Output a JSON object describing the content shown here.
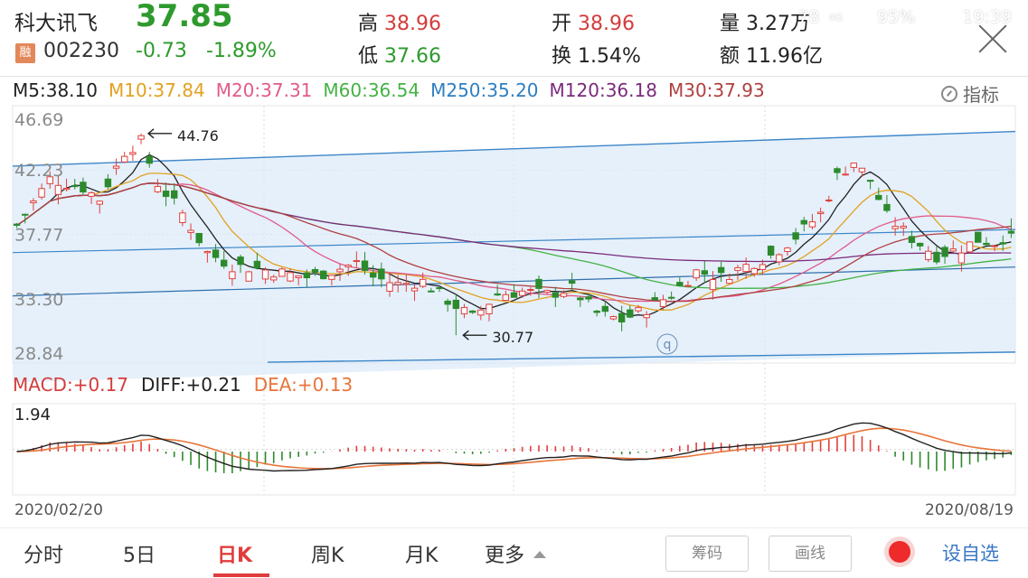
{
  "status_bar": {
    "network": "78",
    "signal_label": "4G",
    "battery": "95%",
    "battery_level": 0.95,
    "time": "19:39"
  },
  "header": {
    "stock_name": "科大讯飞",
    "price": "37.85",
    "badge": "融",
    "code": "002230",
    "change": "-0.73",
    "change_pct": "-1.89%",
    "high_label": "高",
    "high": "38.96",
    "low_label": "低",
    "low": "37.66",
    "open_label": "开",
    "open": "38.96",
    "turnover_label": "换",
    "turnover": "1.54%",
    "volume_label": "量",
    "volume": "3.27万",
    "amount_label": "额",
    "amount": "11.96亿"
  },
  "ma_legend": [
    {
      "label": "M5:38.10",
      "color": "#222222"
    },
    {
      "label": "M10:37.84",
      "color": "#e3a11f"
    },
    {
      "label": "M20:37.31",
      "color": "#e25a8a"
    },
    {
      "label": "M60:36.54",
      "color": "#44b244"
    },
    {
      "label": "M250:35.20",
      "color": "#2f7fc1"
    },
    {
      "label": "M120:36.18",
      "color": "#7b2a7b"
    },
    {
      "label": "M30:37.93",
      "color": "#b04040"
    }
  ],
  "indicator_button": "指标",
  "macd_legend": [
    {
      "label": "MACD:+0.17",
      "color": "#d43c3c"
    },
    {
      "label": "DIFF:+0.21",
      "color": "#222222"
    },
    {
      "label": "DEA:+0.13",
      "color": "#e8743a"
    }
  ],
  "chart_data": [
    {
      "type": "candlestick",
      "y_ticks": [
        "46.69",
        "42.23",
        "37.77",
        "33.30",
        "28.84"
      ],
      "ylim": [
        28.84,
        46.69
      ],
      "date_start": "2020/02/20",
      "date_end": "2020/08/19",
      "annotations": [
        {
          "text": "44.76",
          "value": 44.76,
          "kind": "high"
        },
        {
          "text": "30.77",
          "value": 30.77,
          "kind": "low"
        }
      ],
      "channel_marker": "q",
      "grid": true,
      "last_close": 37.85,
      "series": [
        {
          "name": "M5",
          "value": 38.1,
          "color": "#222222"
        },
        {
          "name": "M10",
          "value": 37.84,
          "color": "#e3a11f"
        },
        {
          "name": "M20",
          "value": 37.31,
          "color": "#e25a8a"
        },
        {
          "name": "M60",
          "value": 36.54,
          "color": "#44b244"
        },
        {
          "name": "M250",
          "value": 35.2,
          "color": "#2f7fc1"
        },
        {
          "name": "M120",
          "value": 36.18,
          "color": "#7b2a7b"
        },
        {
          "name": "M30",
          "value": 37.93,
          "color": "#b04040"
        }
      ]
    },
    {
      "type": "bar",
      "name": "MACD",
      "y_ticks": [
        "1.94"
      ],
      "ylim": [
        -1.6,
        1.94
      ],
      "series": [
        {
          "name": "DIFF",
          "value": 0.21,
          "color": "#222222"
        },
        {
          "name": "DEA",
          "value": 0.13,
          "color": "#e8743a"
        },
        {
          "name": "MACD",
          "value": 0.17,
          "color": "#d43c3c"
        }
      ]
    }
  ],
  "bottom_nav": {
    "tabs": [
      "分时",
      "5日",
      "日K",
      "周K",
      "月K",
      "更多"
    ],
    "active_tab": "日K",
    "chips_button": "筹码",
    "draw_button": "画线",
    "watchlist_button": "设自选"
  }
}
